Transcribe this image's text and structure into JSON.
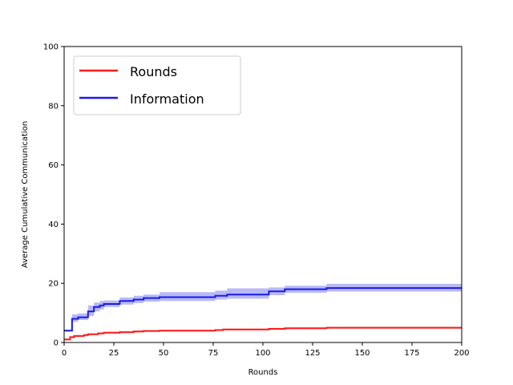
{
  "chart_data": {
    "type": "line",
    "title": "",
    "xlabel": "Rounds",
    "ylabel": "Average Cumulative Communication",
    "xlim": [
      0,
      200
    ],
    "ylim": [
      0,
      100
    ],
    "xticks": [
      0,
      25,
      50,
      75,
      100,
      125,
      150,
      175,
      200
    ],
    "yticks": [
      0,
      20,
      40,
      60,
      80,
      100
    ],
    "grid": false,
    "legend": "upper-left",
    "series": [
      {
        "name": "Rounds",
        "color": "#ff1a1a",
        "band_color": "#ff8080",
        "x": [
          0,
          2,
          3,
          5,
          10,
          12,
          17,
          20,
          28,
          35,
          40,
          48,
          76,
          80,
          103,
          111,
          132,
          200
        ],
        "y": [
          1.0,
          1.0,
          1.8,
          2.2,
          2.5,
          2.8,
          3.1,
          3.3,
          3.5,
          3.7,
          3.9,
          4.0,
          4.2,
          4.4,
          4.6,
          4.8,
          5.0,
          5.0
        ],
        "lower": [
          0.8,
          0.8,
          1.5,
          1.9,
          2.2,
          2.5,
          2.8,
          3.0,
          3.2,
          3.4,
          3.6,
          3.7,
          3.9,
          4.1,
          4.3,
          4.5,
          4.7,
          4.7
        ],
        "upper": [
          1.3,
          1.3,
          2.1,
          2.5,
          2.8,
          3.1,
          3.4,
          3.6,
          3.8,
          4.0,
          4.2,
          4.3,
          4.5,
          4.7,
          4.9,
          5.1,
          5.3,
          5.3
        ]
      },
      {
        "name": "Information",
        "color": "#1a1aee",
        "band_color": "#8080ee",
        "x": [
          0,
          3,
          4,
          7,
          12,
          15,
          18,
          20,
          28,
          35,
          40,
          48,
          76,
          82,
          103,
          111,
          132,
          200
        ],
        "y": [
          4.0,
          4.0,
          8.0,
          8.5,
          10.5,
          12.0,
          12.5,
          13.0,
          14.0,
          14.5,
          15.0,
          15.3,
          15.8,
          16.2,
          17.3,
          18.0,
          18.4,
          18.4
        ],
        "lower": [
          3.8,
          3.8,
          7.0,
          7.6,
          9.0,
          10.5,
          11.2,
          12.0,
          12.8,
          13.3,
          13.8,
          14.0,
          14.5,
          14.8,
          16.0,
          16.8,
          17.2,
          17.2
        ],
        "upper": [
          4.3,
          4.3,
          9.5,
          9.8,
          12.5,
          13.5,
          14.0,
          14.2,
          15.2,
          15.8,
          16.2,
          17.0,
          17.5,
          18.3,
          18.6,
          19.2,
          19.8,
          19.8
        ]
      }
    ]
  }
}
